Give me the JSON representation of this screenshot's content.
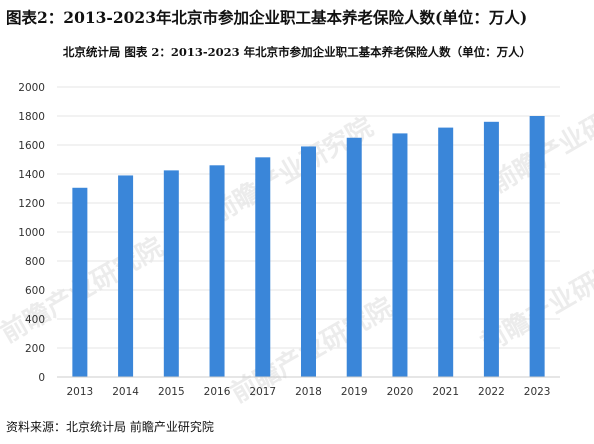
{
  "header": {
    "main_title": "图表2：2013-2023年北京市参加企业职工基本养老保险人数(单位：万人)",
    "chart_title": "北京统计局  图表 2：2013-2023 年北京市参加企业职工基本养老保险人数（单位：万人）"
  },
  "footer": {
    "source": "资料来源：北京统计局 前瞻产业研究院"
  },
  "watermark": {
    "text": "前瞻产业研究院"
  },
  "colors": {
    "bar": "#3a86d9",
    "grid": "#e6e6e6",
    "axis": "#cccccc"
  },
  "chart_data": {
    "type": "bar",
    "categories": [
      "2013",
      "2014",
      "2015",
      "2016",
      "2017",
      "2018",
      "2019",
      "2020",
      "2021",
      "2022",
      "2023"
    ],
    "values": [
      1305,
      1390,
      1425,
      1460,
      1515,
      1590,
      1650,
      1680,
      1720,
      1760,
      1800
    ],
    "ylim": [
      0,
      2000
    ],
    "yticks": [
      0,
      200,
      400,
      600,
      800,
      1000,
      1200,
      1400,
      1600,
      1800,
      2000
    ],
    "grid": true,
    "legend": "none"
  }
}
